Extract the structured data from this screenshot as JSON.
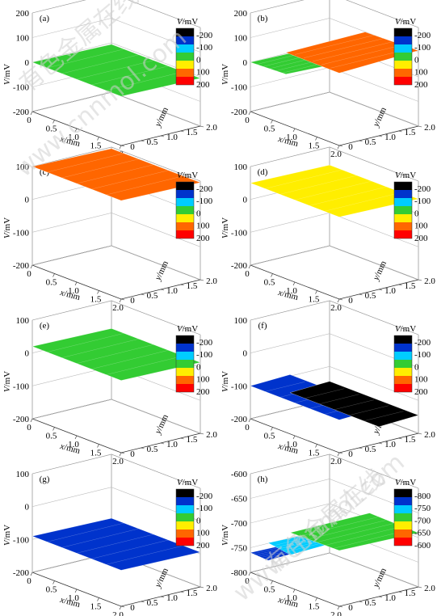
{
  "watermark": {
    "cn": "有色金属在线",
    "site": "www.cnnmol.com"
  },
  "legend_unit_prefix": "V",
  "legend_unit_suffix": "/mV",
  "chart_data": [
    {
      "type": "surface",
      "panel_label": "(a)",
      "xlabel_var": "x",
      "xlabel_unit": "/mm",
      "ylabel_var": "y",
      "ylabel_unit": "/mm",
      "zlabel_var": "V",
      "zlabel_unit": "/mV",
      "x_ticks": [
        "0",
        "0.5",
        "1.0",
        "1.5",
        "2.0"
      ],
      "y_ticks": [
        "0",
        "0.5",
        "1.0",
        "1.5",
        "2.0"
      ],
      "z_ticks": [
        "200",
        "100",
        "0",
        "-100",
        "-200"
      ],
      "zlim": [
        -200,
        200
      ],
      "colorbar": {
        "labels": [
          "-200",
          "-100",
          "0",
          "100",
          "200"
        ],
        "colors": [
          "#000000",
          "#0033cc",
          "#00ccff",
          "#33cc33",
          "#ffee00",
          "#ff6600",
          "#ff0000"
        ]
      },
      "surface_regions": [
        {
          "from_y": 0,
          "to_y": 2,
          "value": 0
        }
      ]
    },
    {
      "type": "surface",
      "panel_label": "(b)",
      "xlabel_var": "x",
      "xlabel_unit": "/mm",
      "ylabel_var": "y",
      "ylabel_unit": "/mm",
      "zlabel_var": "V",
      "zlabel_unit": "/mV",
      "x_ticks": [
        "0",
        "0.5",
        "1.0",
        "1.5",
        "2.0"
      ],
      "y_ticks": [
        "0",
        "0.5",
        "1.0",
        "1.5",
        "2.0"
      ],
      "z_ticks": [
        "200",
        "100",
        "0",
        "-100",
        "-200"
      ],
      "zlim": [
        -200,
        200
      ],
      "colorbar": {
        "labels": [
          "-200",
          "-100",
          "0",
          "100",
          "200"
        ],
        "colors": [
          "#000000",
          "#0033cc",
          "#00ccff",
          "#33cc33",
          "#ffee00",
          "#ff6600",
          "#ff0000"
        ]
      },
      "surface_regions": [
        {
          "from_x": 0,
          "to_x": 0.8,
          "value": 0
        },
        {
          "from_x": 0.8,
          "to_x": 2,
          "value": 100
        }
      ]
    },
    {
      "type": "surface",
      "panel_label": "(c)",
      "xlabel_var": "x",
      "xlabel_unit": "/mm",
      "ylabel_var": "y",
      "ylabel_unit": "/mm",
      "zlabel_var": "V",
      "zlabel_unit": "/mV",
      "x_ticks": [
        "0",
        "0.5",
        "1.0",
        "1.5",
        "2.0"
      ],
      "y_ticks": [
        "0",
        "0.5",
        "1.0",
        "1.5",
        "2.0"
      ],
      "z_ticks": [
        "100",
        "0",
        "-100",
        "-200"
      ],
      "zlim": [
        -200,
        100
      ],
      "colorbar": {
        "labels": [
          "-200",
          "-100",
          "0",
          "100",
          "200"
        ],
        "colors": [
          "#000000",
          "#0033cc",
          "#00ccff",
          "#33cc33",
          "#ffee00",
          "#ff6600",
          "#ff0000"
        ]
      },
      "surface_regions": [
        {
          "from_y": 0,
          "to_y": 2,
          "value": 100
        }
      ]
    },
    {
      "type": "surface",
      "panel_label": "(d)",
      "xlabel_var": "x",
      "xlabel_unit": "/mm",
      "ylabel_var": "y",
      "ylabel_unit": "/mm",
      "zlabel_var": "V",
      "zlabel_unit": "/mV",
      "x_ticks": [
        "0",
        "0.5",
        "1.0",
        "1.5",
        "2.0"
      ],
      "y_ticks": [
        "0",
        "0.5",
        "1.0",
        "1.5",
        "2.0"
      ],
      "z_ticks": [
        "100",
        "0",
        "-100",
        "-200"
      ],
      "zlim": [
        -200,
        100
      ],
      "colorbar": {
        "labels": [
          "-200",
          "-100",
          "0",
          "100",
          "200"
        ],
        "colors": [
          "#000000",
          "#0033cc",
          "#00ccff",
          "#33cc33",
          "#ffee00",
          "#ff6600",
          "#ff0000"
        ]
      },
      "surface_regions": [
        {
          "from_y": 0,
          "to_y": 2,
          "value": 50
        }
      ]
    },
    {
      "type": "surface",
      "panel_label": "(e)",
      "xlabel_var": "x",
      "xlabel_unit": "/mm",
      "ylabel_var": "y",
      "ylabel_unit": "/mm",
      "zlabel_var": "V",
      "zlabel_unit": "/mV",
      "x_ticks": [
        "0",
        "0.5",
        "1.0",
        "1.5",
        "2.0"
      ],
      "y_ticks": [
        "0",
        "0.5",
        "1.0",
        "1.5",
        "2.0"
      ],
      "z_ticks": [
        "100",
        "0",
        "-100",
        "-200"
      ],
      "zlim": [
        -200,
        100
      ],
      "colorbar": {
        "labels": [
          "-200",
          "-100",
          "0",
          "100",
          "200"
        ],
        "colors": [
          "#000000",
          "#0033cc",
          "#00ccff",
          "#33cc33",
          "#ffee00",
          "#ff6600",
          "#ff0000"
        ]
      },
      "surface_regions": [
        {
          "from_y": 0,
          "to_y": 2,
          "value": 20
        }
      ]
    },
    {
      "type": "surface",
      "panel_label": "(f)",
      "xlabel_var": "x",
      "xlabel_unit": "/mm",
      "ylabel_var": "y",
      "ylabel_unit": "/mm",
      "zlabel_var": "V",
      "zlabel_unit": "/mV",
      "x_ticks": [
        "0",
        "0.5",
        "1.0",
        "1.5",
        "2.0"
      ],
      "y_ticks": [
        "0",
        "0.5",
        "1.0",
        "1.5",
        "2.0"
      ],
      "z_ticks": [
        "100",
        "0",
        "-100",
        "-200"
      ],
      "zlim": [
        -200,
        100
      ],
      "colorbar": {
        "labels": [
          "-200",
          "-100",
          "0",
          "100",
          "200"
        ],
        "colors": [
          "#000000",
          "#0033cc",
          "#00ccff",
          "#33cc33",
          "#ffee00",
          "#ff6600",
          "#ff0000"
        ]
      },
      "surface_regions": [
        {
          "from_y": 0,
          "to_y": 1,
          "value": -100
        },
        {
          "from_y": 1,
          "to_y": 2,
          "value": -150
        }
      ]
    },
    {
      "type": "surface",
      "panel_label": "(g)",
      "xlabel_var": "x",
      "xlabel_unit": "/mm",
      "ylabel_var": "y",
      "ylabel_unit": "/mm",
      "zlabel_var": "V",
      "zlabel_unit": "/mV",
      "x_ticks": [
        "0",
        "0.5",
        "1.0",
        "1.5",
        "2.0"
      ],
      "y_ticks": [
        "0",
        "0.5",
        "1.0",
        "1.5",
        "2.0"
      ],
      "z_ticks": [
        "100",
        "0",
        "-100",
        "-200"
      ],
      "zlim": [
        -200,
        100
      ],
      "colorbar": {
        "labels": [
          "-200",
          "-100",
          "0",
          "100",
          "200"
        ],
        "colors": [
          "#000000",
          "#0033cc",
          "#00ccff",
          "#33cc33",
          "#ffee00",
          "#ff6600",
          "#ff0000"
        ]
      },
      "surface_regions": [
        {
          "from_y": 0,
          "to_y": 2,
          "value": -90
        }
      ]
    },
    {
      "type": "surface",
      "panel_label": "(h)",
      "xlabel_var": "x",
      "xlabel_unit": "/mm",
      "ylabel_var": "y",
      "ylabel_unit": "/mm",
      "zlabel_var": "V",
      "zlabel_unit": "/mV",
      "x_ticks": [
        "0",
        "0.5",
        "1.0",
        "1.5",
        "2.0"
      ],
      "y_ticks": [
        "0",
        "0.5",
        "1.0",
        "1.5",
        "2.0"
      ],
      "z_ticks": [
        "-600",
        "-650",
        "-700",
        "-750",
        "-800"
      ],
      "zlim": [
        -800,
        -600
      ],
      "colorbar": {
        "labels": [
          "-800",
          "-750",
          "-700",
          "-650",
          "-600"
        ],
        "colors": [
          "#000000",
          "#0033cc",
          "#00ccff",
          "#33cc33",
          "#ffee00",
          "#ff6600",
          "#ff0000"
        ]
      },
      "surface_regions": [
        {
          "from_x": 0,
          "to_x": 0.4,
          "value": -760
        },
        {
          "from_x": 0.4,
          "to_x": 0.9,
          "value": -730
        },
        {
          "from_x": 0.9,
          "to_x": 2,
          "value": -690
        }
      ]
    }
  ]
}
